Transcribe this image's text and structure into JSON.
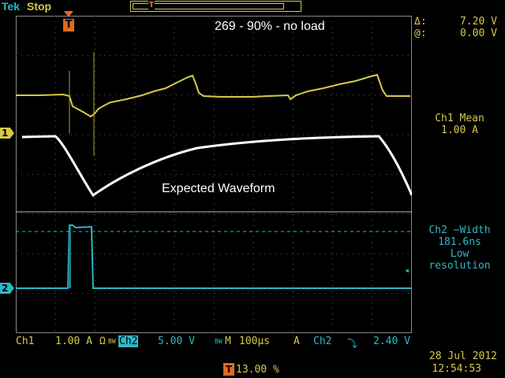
{
  "header": {
    "brand": "Tek",
    "run_state": "Stop",
    "trigger_marker": "T"
  },
  "annotations": {
    "title": "269 - 90% - no load",
    "expected": "Expected Waveform"
  },
  "cursor_readout": {
    "delta_label": "Δ:",
    "delta_value": "7.20 V",
    "at_label": "@:",
    "at_value": "0.00 V"
  },
  "measurements": {
    "m1_name": "Ch1 Mean",
    "m1_value": "1.00 A",
    "m2_name": "Ch2 −Width",
    "m2_value": "181.6ns",
    "m2_note1": "Low",
    "m2_note2": "resolution"
  },
  "channel_markers": {
    "ch1": "1",
    "ch2": "2"
  },
  "status_bar": {
    "ch1_label": "Ch1",
    "ch1_scale": "1.00 A",
    "ch1_coupling": "Ω",
    "ch1_bw": "BW",
    "ch2_label": "Ch2",
    "ch2_scale": "5.00 V",
    "ch2_bw": "BW",
    "timebase_prefix": "M",
    "timebase": "100µs",
    "trigger_mode": "A",
    "trigger_source": "Ch2",
    "trigger_slope": "⤵",
    "trigger_level": "2.40 V",
    "date": "28 Jul  2012",
    "time": "12:54:53",
    "trigger_position": "13.00 %"
  },
  "colors": {
    "ch1": "#d8c84a",
    "ch2": "#2db8c8",
    "reference": "#ffffff",
    "trigger": "#e06a1a",
    "grid": "#6a6a6a"
  }
}
